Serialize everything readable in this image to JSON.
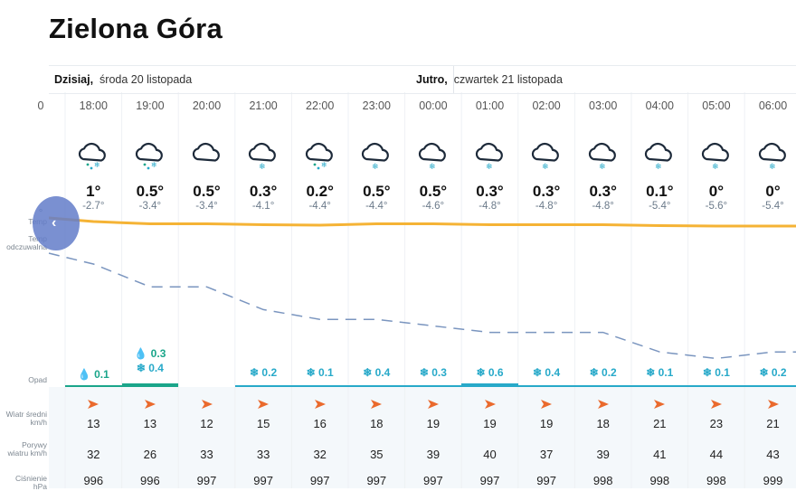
{
  "city": "Zielona Góra",
  "days": [
    {
      "name": "Dzisiaj,",
      "date": "środa 20 listopada"
    },
    {
      "name": "Jutro,",
      "date": "czwartek 21 listopada"
    }
  ],
  "row_labels": {
    "temp": "Temp",
    "feel": "Temp odczuwalna",
    "precip": "Opad",
    "wind": "Wiatr średni km/h",
    "gust": "Porywy wiatru km/h",
    "pressure": "Ciśnienie hPa"
  },
  "nav": {
    "prev": "‹"
  },
  "partial_first": {
    "hour": "0",
    "feel": "°"
  },
  "hours": [
    {
      "time": "18:00",
      "icon": "cloud-rain-snow-icon",
      "temp": "1°",
      "feel": "-2.7°",
      "rain": "0.1",
      "snow": "",
      "wind": "13",
      "gust": "32",
      "pressure": "996",
      "temp_val": 1,
      "feel_val": -2.7
    },
    {
      "time": "19:00",
      "icon": "cloud-rain-snow-icon",
      "temp": "0.5°",
      "feel": "-3.4°",
      "rain": "0.3",
      "snow": "0.4",
      "wind": "13",
      "gust": "26",
      "pressure": "996",
      "temp_val": 0.5,
      "feel_val": -3.4
    },
    {
      "time": "20:00",
      "icon": "cloud-icon",
      "temp": "0.5°",
      "feel": "-3.4°",
      "rain": "",
      "snow": "",
      "wind": "12",
      "gust": "33",
      "pressure": "997",
      "temp_val": 0.5,
      "feel_val": -3.4
    },
    {
      "time": "21:00",
      "icon": "cloud-snow-icon",
      "temp": "0.3°",
      "feel": "-4.1°",
      "rain": "",
      "snow": "0.2",
      "wind": "15",
      "gust": "33",
      "pressure": "997",
      "temp_val": 0.3,
      "feel_val": -4.1
    },
    {
      "time": "22:00",
      "icon": "cloud-rain-snow-icon",
      "temp": "0.2°",
      "feel": "-4.4°",
      "rain": "",
      "snow": "0.1",
      "wind": "16",
      "gust": "32",
      "pressure": "997",
      "temp_val": 0.2,
      "feel_val": -4.4
    },
    {
      "time": "23:00",
      "icon": "cloud-snow-icon",
      "temp": "0.5°",
      "feel": "-4.4°",
      "rain": "",
      "snow": "0.4",
      "wind": "18",
      "gust": "35",
      "pressure": "997",
      "temp_val": 0.5,
      "feel_val": -4.4
    },
    {
      "time": "00:00",
      "icon": "cloud-snow-icon",
      "temp": "0.5°",
      "feel": "-4.6°",
      "rain": "",
      "snow": "0.3",
      "wind": "19",
      "gust": "39",
      "pressure": "997",
      "temp_val": 0.5,
      "feel_val": -4.6
    },
    {
      "time": "01:00",
      "icon": "cloud-snow-icon",
      "temp": "0.3°",
      "feel": "-4.8°",
      "rain": "",
      "snow": "0.6",
      "wind": "19",
      "gust": "40",
      "pressure": "997",
      "temp_val": 0.3,
      "feel_val": -4.8
    },
    {
      "time": "02:00",
      "icon": "cloud-snow-icon",
      "temp": "0.3°",
      "feel": "-4.8°",
      "rain": "",
      "snow": "0.4",
      "wind": "19",
      "gust": "37",
      "pressure": "997",
      "temp_val": 0.3,
      "feel_val": -4.8
    },
    {
      "time": "03:00",
      "icon": "cloud-snow-icon",
      "temp": "0.3°",
      "feel": "-4.8°",
      "rain": "",
      "snow": "0.2",
      "wind": "18",
      "gust": "39",
      "pressure": "998",
      "temp_val": 0.3,
      "feel_val": -4.8
    },
    {
      "time": "04:00",
      "icon": "cloud-snow-icon",
      "temp": "0.1°",
      "feel": "-5.4°",
      "rain": "",
      "snow": "0.1",
      "wind": "21",
      "gust": "41",
      "pressure": "998",
      "temp_val": 0.1,
      "feel_val": -5.4
    },
    {
      "time": "05:00",
      "icon": "cloud-snow-icon",
      "temp": "0°",
      "feel": "-5.6°",
      "rain": "",
      "snow": "0.1",
      "wind": "23",
      "gust": "44",
      "pressure": "998",
      "temp_val": 0,
      "feel_val": -5.6
    },
    {
      "time": "06:00",
      "icon": "cloud-snow-icon",
      "temp": "0°",
      "feel": "-5.4°",
      "rain": "",
      "snow": "0.2",
      "wind": "21",
      "gust": "43",
      "pressure": "999",
      "temp_val": 0,
      "feel_val": -5.4
    }
  ],
  "colors": {
    "temp_line": "#f5b335",
    "feel_line": "#7a95bf",
    "rain": "#1aa58a",
    "snow": "#27a9c9",
    "wind_arrow": "#ea6a2d",
    "nav_button": "#637dc9"
  }
}
